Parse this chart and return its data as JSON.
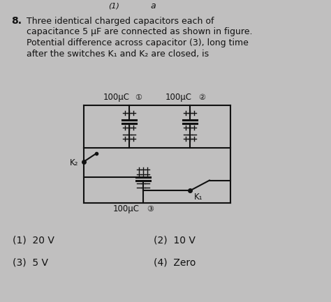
{
  "bg_color": "#c0bfbf",
  "text_color": "#1a1a1a",
  "title_number": "8.",
  "q_line1": "Three identical charged capacitors each of",
  "q_line2": "capacitance 5 μF are connected as shown in figure.",
  "q_line3": "Potential difference across capacitor (3), long time",
  "q_line4": "after the switches K₁ and K₂ are closed, is",
  "cap1_label": "100μC",
  "cap2_label": "100μC",
  "cap3_label": "100μC",
  "k1_label": "K₁",
  "k2_label": "K₂",
  "ans1": "(1)  20 V",
  "ans2": "(2)  10 V",
  "ans3": "(3)  5 V",
  "ans4": "(4)  Zero",
  "header_a": "a",
  "header_paren": "(1)"
}
